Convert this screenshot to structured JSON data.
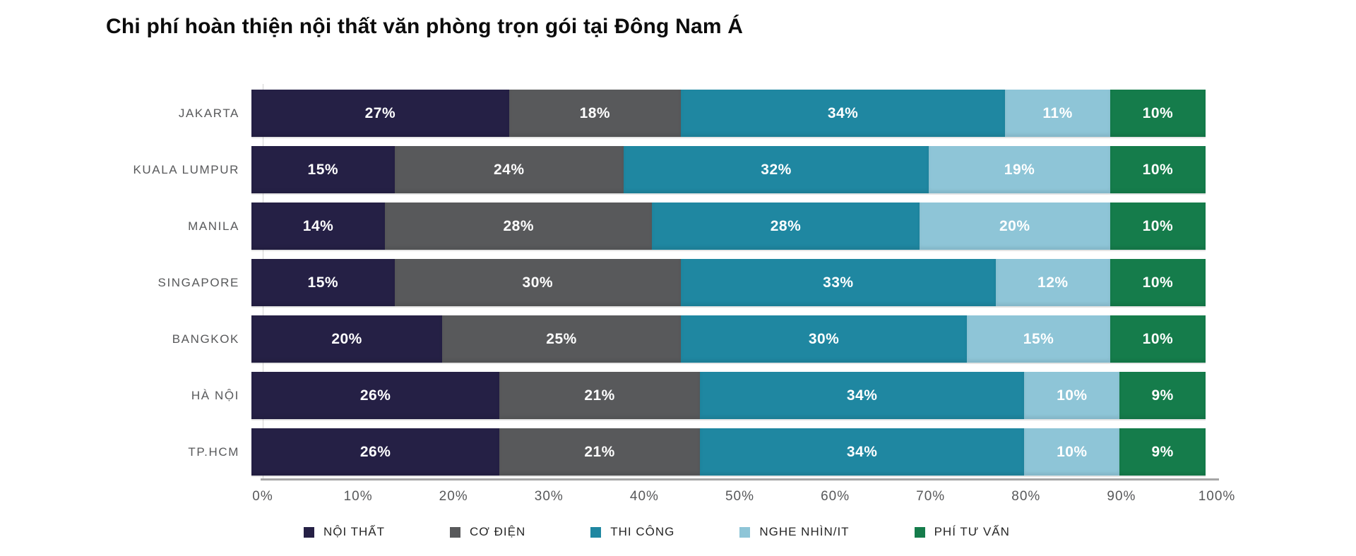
{
  "title": "Chi phí hoàn thiện nội thất văn phòng trọn gói tại Đông Nam Á",
  "chart_data": {
    "type": "bar",
    "orientation": "horizontal",
    "stacked": true,
    "title": "Chi phí hoàn thiện nội thất văn phòng trọn gói tại Đông Nam Á",
    "categories": [
      "JAKARTA",
      "KUALA LUMPUR",
      "MANILA",
      "SINGAPORE",
      "BANGKOK",
      "HÀ NỘI",
      "TP.HCM"
    ],
    "series": [
      {
        "name": "NỘI THẤT",
        "color": "#252045",
        "values": [
          27,
          15,
          14,
          15,
          20,
          26,
          26
        ]
      },
      {
        "name": "CƠ ĐIỆN",
        "color": "#58595B",
        "values": [
          18,
          24,
          28,
          30,
          25,
          21,
          21
        ]
      },
      {
        "name": "THI CÔNG",
        "color": "#1F87A1",
        "values": [
          34,
          32,
          28,
          33,
          30,
          34,
          34
        ]
      },
      {
        "name": "NGHE NHÌN/IT",
        "color": "#8EC5D7",
        "values": [
          11,
          19,
          20,
          12,
          15,
          10,
          10
        ]
      },
      {
        "name": "PHÍ TƯ VẤN",
        "color": "#157C4B",
        "values": [
          10,
          10,
          10,
          10,
          10,
          9,
          9
        ]
      }
    ],
    "value_label_format": "{v}%",
    "x_axis": {
      "min": 0,
      "max": 100,
      "ticks": [
        "0%",
        "10%",
        "20%",
        "30%",
        "40%",
        "50%",
        "60%",
        "70%",
        "80%",
        "90%",
        "100%"
      ]
    },
    "legend_position": "bottom",
    "grid": false,
    "colors": {
      "category_label": "#58595B",
      "value_label": "#FFFFFF",
      "tick_label": "#57585A",
      "axis_line": "#A6A6A6",
      "background": "#FFFFFF"
    }
  }
}
